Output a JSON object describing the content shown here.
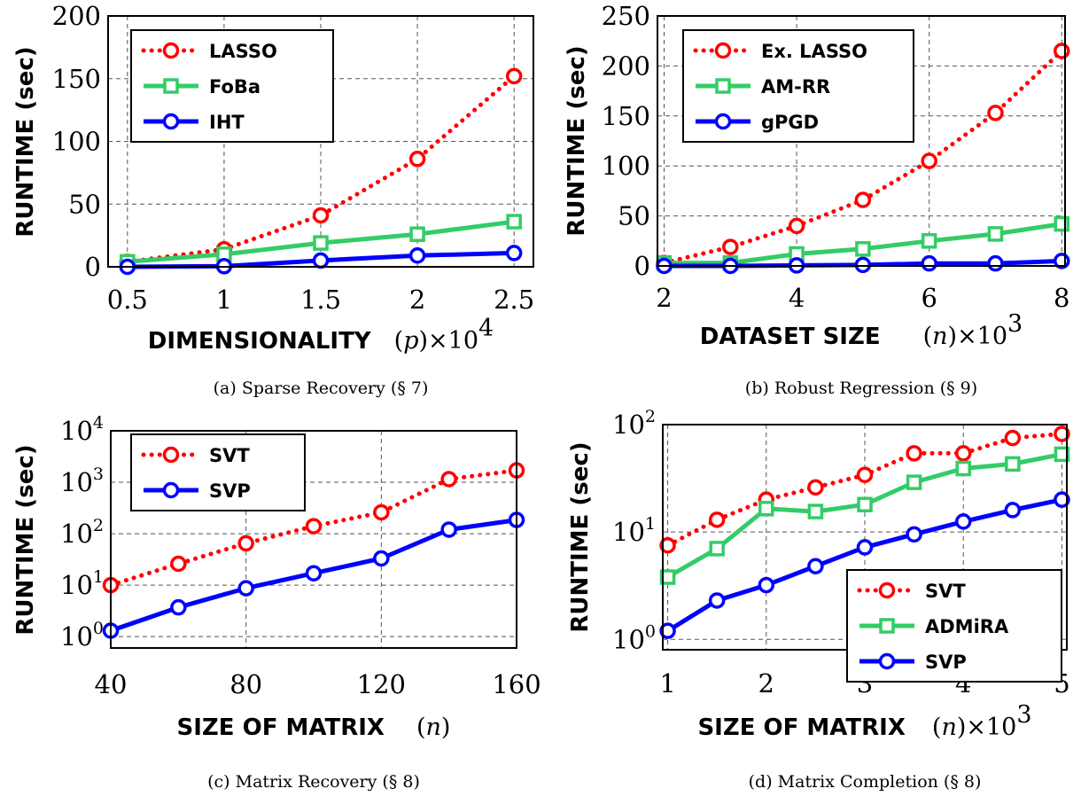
{
  "chart_data": [
    {
      "type": "line",
      "caption": "(a) Sparse Recovery (§ 7)",
      "xlabel": "DIMENSIONALITY",
      "xlabel_math": "(p)",
      "xlabel_scale": "×10",
      "xlabel_scale_exp": "4",
      "ylabel": "RUNTIME (sec)",
      "yscale": "linear",
      "xlim": [
        0.4,
        2.6
      ],
      "ylim": [
        0,
        200
      ],
      "xticks": [
        0.5,
        1,
        1.5,
        2,
        2.5
      ],
      "xtick_labels": [
        "0.5",
        "1",
        "1.5",
        "2",
        "2.5"
      ],
      "yticks": [
        0,
        50,
        100,
        150,
        200
      ],
      "ytick_labels": [
        "0",
        "50",
        "100",
        "150",
        "200"
      ],
      "grid": true,
      "legend_position": "top-left",
      "x": [
        0.5,
        1,
        1.5,
        2,
        2.5
      ],
      "series": [
        {
          "name": "LASSO",
          "color": "#ff0000",
          "style": "dotted",
          "marker": "circle",
          "values": [
            4,
            14,
            41,
            86,
            152
          ]
        },
        {
          "name": "FoBa",
          "color": "#33cc66",
          "style": "solid",
          "marker": "square",
          "values": [
            4,
            10,
            19,
            26,
            36
          ]
        },
        {
          "name": "IHT",
          "color": "#0000ff",
          "style": "solid",
          "marker": "circle",
          "values": [
            0,
            0.5,
            5,
            9,
            11
          ]
        }
      ]
    },
    {
      "type": "line",
      "caption": "(b) Robust Regression (§ 9)",
      "xlabel": "DATASET SIZE",
      "xlabel_math": "(n)",
      "xlabel_scale": "×10",
      "xlabel_scale_exp": "3",
      "ylabel": "RUNTIME (sec)",
      "yscale": "linear",
      "xlim": [
        1.9,
        8.05
      ],
      "ylim": [
        0,
        250
      ],
      "xticks": [
        2,
        4,
        6,
        8
      ],
      "xtick_labels": [
        "2",
        "4",
        "6",
        "8"
      ],
      "yticks": [
        0,
        50,
        100,
        150,
        200,
        250
      ],
      "ytick_labels": [
        "0",
        "50",
        "100",
        "150",
        "200",
        "250"
      ],
      "grid": true,
      "legend_position": "top-left",
      "x": [
        2,
        3,
        4,
        5,
        6,
        7,
        8
      ],
      "series": [
        {
          "name": "Ex. LASSO",
          "color": "#ff0000",
          "style": "dotted",
          "marker": "circle",
          "values": [
            3,
            19,
            40,
            66,
            105,
            153,
            215
          ]
        },
        {
          "name": "AM-RR",
          "color": "#33cc66",
          "style": "solid",
          "marker": "square",
          "values": [
            3,
            3,
            12,
            17,
            25,
            32,
            42
          ]
        },
        {
          "name": "gPGD",
          "color": "#0000ff",
          "style": "solid",
          "marker": "circle",
          "values": [
            0,
            0,
            0.5,
            1,
            2.5,
            2.5,
            5
          ]
        }
      ]
    },
    {
      "type": "line",
      "caption": "(c) Matrix Recovery (§ 8)",
      "xlabel": "SIZE OF MATRIX",
      "xlabel_math": "(n)",
      "xlabel_scale": "",
      "xlabel_scale_exp": "",
      "ylabel": "RUNTIME (sec)",
      "yscale": "log",
      "xlim": [
        40,
        160
      ],
      "ylim": [
        0.6,
        10000
      ],
      "xticks": [
        40,
        80,
        120,
        160
      ],
      "xtick_labels": [
        "40",
        "80",
        "120",
        "160"
      ],
      "yticks": [
        1,
        10,
        100,
        1000,
        10000
      ],
      "ytick_labels": [
        {
          "base": "10",
          "exp": "0"
        },
        {
          "base": "10",
          "exp": "1"
        },
        {
          "base": "10",
          "exp": "2"
        },
        {
          "base": "10",
          "exp": "3"
        },
        {
          "base": "10",
          "exp": "4"
        }
      ],
      "grid": true,
      "legend_position": "top-left",
      "x": [
        40,
        60,
        80,
        100,
        120,
        140,
        160
      ],
      "series": [
        {
          "name": "SVT",
          "color": "#ff0000",
          "style": "dotted",
          "marker": "circle",
          "values": [
            10,
            26,
            65,
            140,
            260,
            1150,
            1700
          ]
        },
        {
          "name": "SVP",
          "color": "#0000ff",
          "style": "solid",
          "marker": "circle",
          "values": [
            1.3,
            3.7,
            8.7,
            17,
            33,
            120,
            185
          ]
        }
      ]
    },
    {
      "type": "line",
      "caption": "(d) Matrix Completion (§ 8)",
      "xlabel": "SIZE OF MATRIX",
      "xlabel_math": "(n)",
      "xlabel_scale": "×10",
      "xlabel_scale_exp": "3",
      "ylabel": "RUNTIME (sec)",
      "yscale": "log",
      "xlim": [
        0.95,
        5.05
      ],
      "ylim": [
        0.8,
        100
      ],
      "xticks": [
        1,
        2,
        3,
        4,
        5
      ],
      "xtick_labels": [
        "1",
        "2",
        "3",
        "4",
        "5"
      ],
      "yticks": [
        1,
        10,
        100
      ],
      "ytick_labels": [
        {
          "base": "10",
          "exp": "0"
        },
        {
          "base": "10",
          "exp": "1"
        },
        {
          "base": "10",
          "exp": "2"
        }
      ],
      "grid": true,
      "legend_position": "bottom-right",
      "x": [
        1,
        1.5,
        2,
        2.5,
        3,
        3.5,
        4,
        4.5,
        5
      ],
      "series": [
        {
          "name": "SVT",
          "color": "#ff0000",
          "style": "dotted",
          "marker": "circle",
          "values": [
            7.5,
            13,
            20,
            26,
            34,
            54,
            54,
            75,
            82
          ]
        },
        {
          "name": "ADMiRA",
          "color": "#33cc66",
          "style": "solid",
          "marker": "square",
          "values": [
            3.8,
            7,
            16.5,
            15.5,
            18,
            29,
            39,
            43,
            53
          ]
        },
        {
          "name": "SVP",
          "color": "#0000ff",
          "style": "solid",
          "marker": "circle",
          "values": [
            1.2,
            2.3,
            3.2,
            4.8,
            7.2,
            9.5,
            12.5,
            16,
            20
          ]
        }
      ]
    }
  ]
}
